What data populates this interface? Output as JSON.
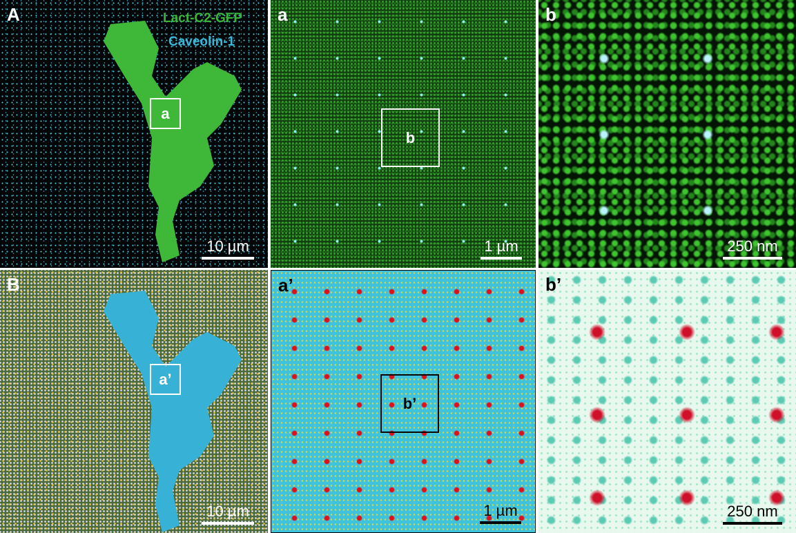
{
  "panels": [
    {
      "label": "A",
      "legend": [
        "Lact-C2-GFP",
        "Caveolin-1"
      ],
      "inset": "a",
      "scale_bar": "10 µm"
    },
    {
      "label": "a",
      "inset": "b",
      "scale_bar": "1 µm"
    },
    {
      "label": "b",
      "scale_bar": "250 nm"
    },
    {
      "label": "B",
      "inset": "a’",
      "scale_bar": "10 µm"
    },
    {
      "label": "a’",
      "inset": "b’",
      "scale_bar": "1 µm"
    },
    {
      "label": "b’",
      "scale_bar": "250 nm"
    }
  ]
}
